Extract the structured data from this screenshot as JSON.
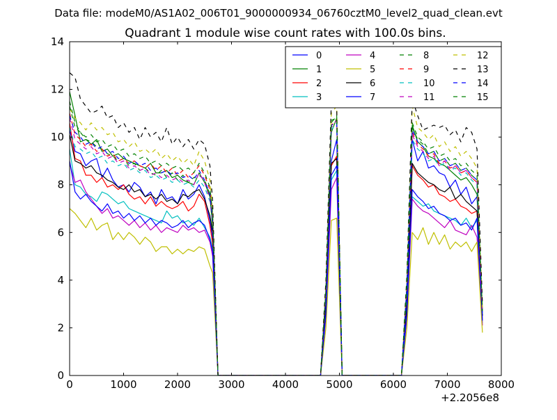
{
  "figure": {
    "supertitle": "Data file: modeM0/AS1A02_006T01_9000000934_06760cztM0_level2_quad_clean.evt",
    "title": "Quadrant 1 module wise count rates with 100.0s bins."
  },
  "chart_data": {
    "type": "line",
    "title": "Quadrant 1 module wise count rates with 100.0s bins.",
    "xlabel": "",
    "ylabel": "",
    "x_offset_label": "+2.2056e8",
    "xlim": [
      0,
      8000
    ],
    "ylim": [
      0,
      14
    ],
    "xticks": [
      0,
      1000,
      2000,
      3000,
      4000,
      5000,
      6000,
      7000,
      8000
    ],
    "yticks": [
      0,
      2,
      4,
      6,
      8,
      10,
      12,
      14
    ],
    "grid": false,
    "legend_position": "top-right",
    "legend_columns": 4,
    "x": [
      0,
      100,
      200,
      300,
      400,
      500,
      600,
      700,
      800,
      900,
      1000,
      1100,
      1200,
      1300,
      1400,
      1500,
      1600,
      1700,
      1800,
      1900,
      2000,
      2100,
      2200,
      2300,
      2400,
      2500,
      2600,
      2650,
      2750,
      4650,
      4750,
      4850,
      4950,
      5050,
      6150,
      6250,
      6350,
      6450,
      6550,
      6650,
      6750,
      6850,
      6950,
      7050,
      7150,
      7250,
      7350,
      7450,
      7550,
      7650
    ],
    "series": [
      {
        "name": "0",
        "color": "#0000ff",
        "dash": "solid",
        "values": [
          10.3,
          9.4,
          9.3,
          8.8,
          9.0,
          9.1,
          8.3,
          8.7,
          8.2,
          7.9,
          8.0,
          7.7,
          8.1,
          7.9,
          7.5,
          7.7,
          7.2,
          7.8,
          7.4,
          7.5,
          7.2,
          7.8,
          7.4,
          7.6,
          8.0,
          7.5,
          6.5,
          5.8,
          0,
          0,
          3.0,
          9.0,
          9.9,
          0,
          0,
          3.0,
          9.9,
          9.0,
          9.4,
          8.7,
          8.8,
          8.5,
          8.4,
          7.9,
          8.2,
          7.6,
          7.9,
          7.2,
          7.5,
          2.5
        ]
      },
      {
        "name": "1",
        "color": "#008000",
        "dash": "solid",
        "values": [
          11.9,
          10.9,
          9.8,
          9.9,
          9.7,
          9.9,
          9.4,
          9.5,
          9.2,
          9.3,
          9.1,
          9.0,
          8.9,
          8.8,
          8.7,
          8.9,
          8.5,
          8.5,
          8.6,
          8.3,
          8.4,
          8.2,
          8.1,
          8.0,
          8.5,
          8.1,
          7.5,
          6.2,
          0,
          0,
          3.5,
          10.2,
          10.8,
          0,
          0,
          3.8,
          10.5,
          9.8,
          9.6,
          9.2,
          9.1,
          8.9,
          8.8,
          8.6,
          8.4,
          8.2,
          8.3,
          8.0,
          7.6,
          2.6
        ]
      },
      {
        "name": "2",
        "color": "#ff0000",
        "dash": "solid",
        "values": [
          10.6,
          9.1,
          9.0,
          8.4,
          8.4,
          8.1,
          8.3,
          7.9,
          8.0,
          7.8,
          8.0,
          7.6,
          7.4,
          7.5,
          7.2,
          7.5,
          7.1,
          7.3,
          7.1,
          7.0,
          7.1,
          7.3,
          6.9,
          7.1,
          7.6,
          7.3,
          6.3,
          5.5,
          0,
          0,
          2.8,
          8.8,
          9.2,
          0,
          0,
          2.9,
          8.8,
          8.4,
          8.2,
          7.9,
          8.0,
          7.6,
          7.5,
          7.3,
          7.4,
          7.1,
          7.0,
          6.8,
          6.9,
          2.3
        ]
      },
      {
        "name": "3",
        "color": "#00bfbf",
        "dash": "solid",
        "values": [
          9.5,
          8.0,
          7.9,
          7.6,
          7.5,
          7.3,
          7.7,
          7.6,
          7.4,
          7.2,
          7.3,
          7.0,
          6.9,
          6.8,
          6.7,
          6.6,
          6.5,
          6.4,
          6.9,
          6.6,
          6.7,
          6.4,
          6.5,
          6.3,
          6.6,
          6.2,
          5.8,
          5.3,
          0,
          0,
          2.6,
          8.2,
          8.6,
          0,
          0,
          2.6,
          7.5,
          7.3,
          7.1,
          7.2,
          6.9,
          6.8,
          6.7,
          6.6,
          6.5,
          6.3,
          6.6,
          6.2,
          6.5,
          2.2
        ]
      },
      {
        "name": "4",
        "color": "#bf00bf",
        "dash": "solid",
        "values": [
          8.9,
          8.1,
          8.2,
          7.7,
          7.4,
          7.1,
          6.8,
          7.0,
          6.6,
          6.7,
          6.5,
          6.3,
          6.5,
          6.2,
          6.4,
          6.1,
          6.3,
          6.0,
          6.2,
          6.1,
          6.0,
          6.3,
          6.1,
          6.2,
          6.0,
          6.1,
          5.6,
          5.0,
          0,
          0,
          2.5,
          7.8,
          8.3,
          0,
          0,
          2.5,
          7.4,
          7.1,
          6.9,
          6.8,
          6.6,
          6.4,
          6.2,
          6.5,
          6.1,
          6.0,
          5.9,
          6.3,
          5.8,
          2.1
        ]
      },
      {
        "name": "5",
        "color": "#bfbf00",
        "dash": "solid",
        "values": [
          7.0,
          6.8,
          6.5,
          6.2,
          6.6,
          6.1,
          6.3,
          6.4,
          5.7,
          6.0,
          5.7,
          6.0,
          5.8,
          5.5,
          5.8,
          5.6,
          5.2,
          5.4,
          5.4,
          5.1,
          5.3,
          5.1,
          5.3,
          5.2,
          5.4,
          5.3,
          4.6,
          4.3,
          0,
          0,
          2.0,
          6.5,
          6.6,
          0,
          0,
          2.0,
          6.0,
          5.7,
          6.2,
          5.5,
          6.0,
          5.5,
          5.9,
          5.3,
          5.6,
          5.4,
          5.6,
          5.2,
          5.6,
          1.8
        ]
      },
      {
        "name": "6",
        "color": "#000000",
        "dash": "solid",
        "values": [
          10.1,
          9.0,
          8.9,
          8.7,
          8.8,
          8.5,
          8.4,
          8.2,
          8.1,
          7.9,
          7.8,
          8.0,
          7.7,
          7.8,
          7.5,
          7.6,
          7.4,
          7.6,
          7.3,
          7.4,
          7.2,
          7.6,
          7.5,
          7.7,
          7.8,
          7.4,
          6.7,
          6.0,
          0,
          0,
          2.9,
          8.9,
          9.1,
          0,
          0,
          3.0,
          8.9,
          8.5,
          8.3,
          8.1,
          8.0,
          7.8,
          7.7,
          7.9,
          7.4,
          7.6,
          7.3,
          7.1,
          6.9,
          2.5
        ]
      },
      {
        "name": "7",
        "color": "#0000ff",
        "dash": "solid",
        "values": [
          9.0,
          7.7,
          7.4,
          7.6,
          7.3,
          7.1,
          6.9,
          7.2,
          6.8,
          6.9,
          6.6,
          6.8,
          6.5,
          6.7,
          6.4,
          6.6,
          6.3,
          6.5,
          6.4,
          6.2,
          6.3,
          6.5,
          6.2,
          6.4,
          6.5,
          6.3,
          5.7,
          5.2,
          0,
          0,
          2.6,
          8.4,
          8.8,
          0,
          0,
          2.6,
          7.8,
          7.5,
          7.3,
          7.0,
          7.1,
          6.8,
          6.7,
          6.5,
          6.6,
          6.3,
          6.4,
          6.1,
          6.6,
          2.3
        ]
      },
      {
        "name": "8",
        "color": "#008000",
        "dash": "dashed",
        "values": [
          11.5,
          10.6,
          10.2,
          9.9,
          9.8,
          9.6,
          9.5,
          9.3,
          9.2,
          9.0,
          9.1,
          8.8,
          8.9,
          8.6,
          8.7,
          8.5,
          8.4,
          8.6,
          8.3,
          8.5,
          8.2,
          8.4,
          8.1,
          8.3,
          8.4,
          8.2,
          7.6,
          6.5,
          0,
          0,
          3.6,
          10.6,
          10.9,
          0,
          0,
          3.8,
          10.4,
          9.9,
          9.7,
          9.3,
          9.4,
          9.0,
          9.1,
          8.8,
          8.9,
          8.6,
          8.7,
          8.4,
          8.2,
          2.7
        ]
      },
      {
        "name": "9",
        "color": "#ff0000",
        "dash": "dashed",
        "values": [
          11.0,
          10.1,
          9.9,
          9.6,
          9.7,
          9.4,
          9.5,
          9.2,
          9.3,
          9.0,
          9.1,
          8.9,
          9.0,
          8.8,
          8.7,
          8.9,
          8.6,
          8.8,
          8.5,
          8.7,
          8.4,
          8.6,
          8.3,
          8.5,
          8.8,
          8.4,
          7.8,
          6.7,
          0,
          0,
          3.5,
          10.5,
          10.7,
          0,
          0,
          3.7,
          10.2,
          9.7,
          9.5,
          9.2,
          9.3,
          8.9,
          9.0,
          8.7,
          8.8,
          8.5,
          8.6,
          8.3,
          8.1,
          2.6
        ]
      },
      {
        "name": "10",
        "color": "#00bfbf",
        "dash": "dashed",
        "values": [
          10.4,
          9.6,
          9.5,
          9.3,
          9.4,
          9.1,
          9.2,
          8.9,
          9.0,
          8.8,
          8.9,
          8.6,
          8.7,
          8.5,
          8.6,
          8.3,
          8.4,
          8.2,
          8.3,
          8.1,
          8.2,
          8.0,
          8.1,
          7.9,
          8.2,
          7.9,
          7.3,
          6.4,
          0,
          0,
          3.4,
          10.3,
          10.6,
          0,
          0,
          3.5,
          9.9,
          9.5,
          9.3,
          9.0,
          9.1,
          8.8,
          8.9,
          8.6,
          8.7,
          8.4,
          8.5,
          8.2,
          8.0,
          2.6
        ]
      },
      {
        "name": "11",
        "color": "#bf00bf",
        "dash": "dashed",
        "values": [
          10.8,
          9.9,
          9.7,
          9.5,
          9.6,
          9.3,
          9.4,
          9.1,
          9.2,
          8.9,
          9.0,
          8.7,
          8.8,
          8.6,
          8.7,
          8.4,
          8.5,
          8.3,
          8.4,
          8.2,
          8.3,
          8.1,
          8.2,
          8.0,
          8.5,
          8.1,
          7.4,
          6.5,
          0,
          0,
          3.5,
          10.4,
          10.7,
          0,
          0,
          3.6,
          10.1,
          9.6,
          9.4,
          9.1,
          9.2,
          8.8,
          9.0,
          8.6,
          8.8,
          8.5,
          8.6,
          8.3,
          8.1,
          2.6
        ]
      },
      {
        "name": "12",
        "color": "#bfbf00",
        "dash": "dashed",
        "values": [
          11.2,
          10.8,
          10.6,
          10.3,
          10.6,
          10.3,
          10.4,
          10.1,
          10.2,
          9.8,
          9.9,
          9.6,
          9.8,
          9.4,
          9.5,
          9.3,
          9.5,
          9.1,
          9.3,
          9.0,
          9.2,
          8.9,
          9.1,
          8.8,
          9.4,
          9.0,
          8.2,
          6.9,
          0,
          0,
          3.8,
          11.0,
          11.3,
          0,
          0,
          4.0,
          11.3,
          10.4,
          10.2,
          9.9,
          10.1,
          9.6,
          9.8,
          9.4,
          9.6,
          9.2,
          9.4,
          9.1,
          8.7,
          2.8
        ]
      },
      {
        "name": "13",
        "color": "#000000",
        "dash": "dashed",
        "values": [
          12.7,
          12.5,
          11.6,
          11.3,
          11.0,
          11.1,
          11.3,
          10.8,
          10.9,
          10.4,
          10.6,
          10.2,
          10.4,
          9.9,
          10.4,
          10.0,
          10.2,
          9.8,
          10.4,
          9.7,
          10.0,
          9.6,
          9.9,
          9.5,
          9.9,
          9.7,
          8.8,
          7.3,
          0,
          0,
          4.0,
          11.5,
          11.2,
          0,
          0,
          4.2,
          11.6,
          10.9,
          10.3,
          10.4,
          10.5,
          10.4,
          10.5,
          10.1,
          10.3,
          9.8,
          10.4,
          10.2,
          9.5,
          3.0
        ]
      },
      {
        "name": "14",
        "color": "#0000ff",
        "dash": "dashed",
        "values": [
          10.9,
          10.2,
          10.0,
          9.7,
          9.8,
          9.5,
          9.6,
          9.3,
          9.4,
          9.1,
          9.2,
          8.9,
          9.0,
          8.8,
          8.9,
          8.6,
          8.7,
          8.5,
          8.6,
          8.4,
          8.5,
          8.3,
          8.4,
          8.2,
          8.6,
          8.2,
          7.6,
          6.6,
          0,
          0,
          3.5,
          10.5,
          10.6,
          0,
          0,
          3.7,
          10.3,
          9.8,
          9.6,
          9.3,
          9.4,
          9.0,
          9.1,
          8.8,
          8.9,
          8.6,
          8.7,
          8.4,
          8.2,
          2.6
        ]
      },
      {
        "name": "15",
        "color": "#008000",
        "dash": "dashed",
        "values": [
          11.3,
          10.4,
          10.2,
          10.0,
          10.1,
          9.8,
          9.9,
          9.6,
          9.7,
          9.4,
          9.5,
          9.2,
          9.3,
          9.1,
          9.2,
          8.9,
          9.0,
          8.8,
          8.9,
          8.7,
          8.8,
          8.6,
          8.7,
          8.5,
          8.9,
          8.5,
          7.9,
          6.8,
          0,
          0,
          3.6,
          10.7,
          10.8,
          0,
          0,
          3.8,
          10.6,
          10.0,
          9.8,
          9.5,
          9.6,
          9.2,
          9.3,
          9.0,
          9.1,
          8.8,
          8.9,
          8.6,
          8.4,
          2.7
        ]
      }
    ]
  }
}
